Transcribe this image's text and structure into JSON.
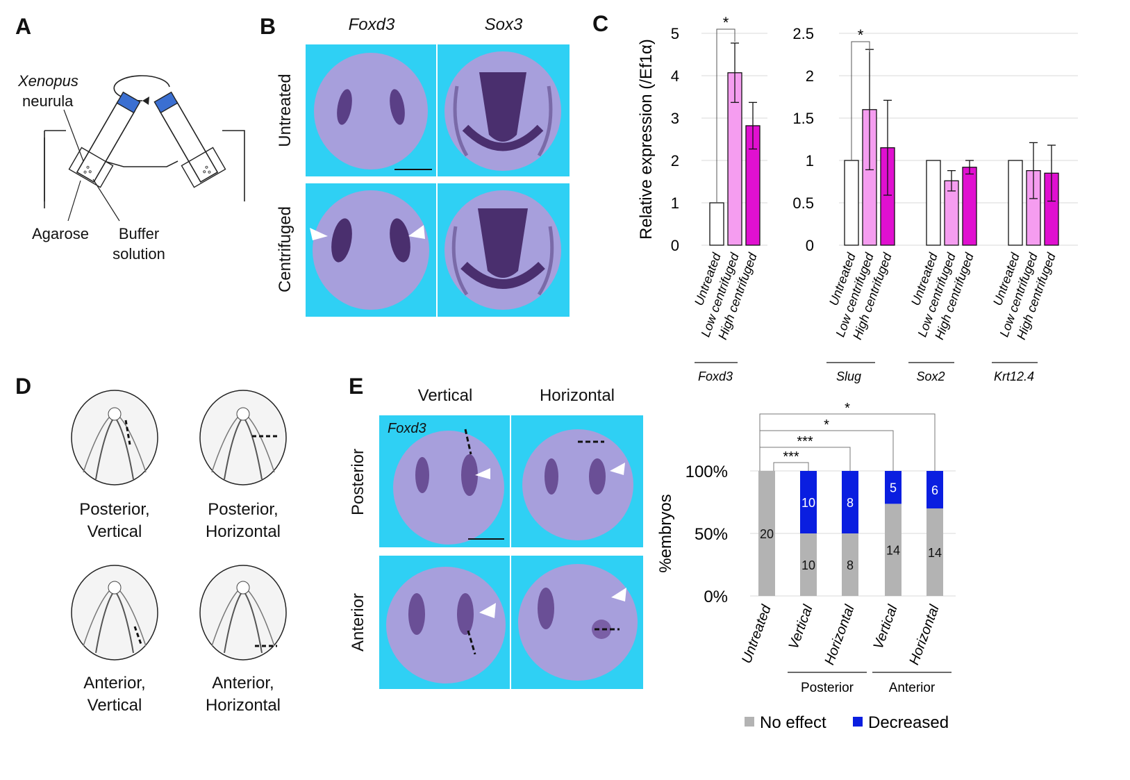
{
  "panel_letters": {
    "A": "A",
    "B": "B",
    "C": "C",
    "D": "D",
    "E": "E"
  },
  "panelA": {
    "xenopus": "Xenopus",
    "neurula": "neurula",
    "agarose": "Agarose",
    "buffer_line1": "Buffer",
    "buffer_line2": "solution"
  },
  "panelB": {
    "col1": "Foxd3",
    "col2": "Sox3",
    "row1": "Untreated",
    "row2": "Centrifuged"
  },
  "panelD": {
    "c1_l1": "Posterior,",
    "c1_l2": "Vertical",
    "c2_l1": "Posterior,",
    "c2_l2": "Horizontal",
    "c3_l1": "Anterior,",
    "c3_l2": "Vertical",
    "c4_l1": "Anterior,",
    "c4_l2": "Horizontal"
  },
  "panelE": {
    "col1": "Vertical",
    "col2": "Horizontal",
    "row1": "Posterior",
    "row2": "Anterior",
    "gene": "Foxd3"
  },
  "colors": {
    "untreated": "#ffffff",
    "low": "#f59df0",
    "high": "#e010d0",
    "no_effect": "#b3b3b3",
    "decreased": "#0a1ee0",
    "photo_bg": "#2fd0f4"
  },
  "chart_data": [
    {
      "type": "bar",
      "ylabel": "Relative expression (/Ef1α)",
      "ylim": [
        0,
        5
      ],
      "yticks": [
        "0",
        "1",
        "2",
        "3",
        "4",
        "5"
      ],
      "categories": [
        "Untreated",
        "Low centrifuged",
        "High centrifuged"
      ],
      "group": "Foxd3",
      "values": [
        1.0,
        4.07,
        2.82
      ],
      "errors": [
        0,
        0.7,
        0.55
      ],
      "significance": {
        "pair": [
          0,
          1
        ],
        "label": "*"
      }
    },
    {
      "type": "bar",
      "ylim": [
        0,
        2.5
      ],
      "yticks": [
        "0",
        "0.5",
        "1",
        "1.5",
        "2",
        "2.5"
      ],
      "categories": [
        "Untreated",
        "Low centrifuged",
        "High centrifuged"
      ],
      "groups": [
        {
          "name": "Slug",
          "values": [
            1.0,
            1.6,
            1.15
          ],
          "errors": [
            0,
            0.71,
            0.56
          ],
          "significance": {
            "pair": [
              0,
              1
            ],
            "label": "*"
          }
        },
        {
          "name": "Sox2",
          "values": [
            1.0,
            0.76,
            0.92
          ],
          "errors": [
            0,
            0.12,
            0.08
          ]
        },
        {
          "name": "Krt12.4",
          "values": [
            1.0,
            0.88,
            0.85
          ],
          "errors": [
            0,
            0.33,
            0.33
          ]
        }
      ]
    },
    {
      "type": "bar",
      "stacked": true,
      "ylabel": "%embryos",
      "ylim": [
        0,
        100
      ],
      "yticks": [
        "0%",
        "50%",
        "100%"
      ],
      "categories": [
        "Untreated",
        "Vertical",
        "Horizontal",
        "Vertical",
        "Horizontal"
      ],
      "category_groups": [
        {
          "name": "Posterior",
          "members": [
            1,
            2
          ]
        },
        {
          "name": "Anterior",
          "members": [
            3,
            4
          ]
        }
      ],
      "series": [
        {
          "name": "No effect",
          "counts": [
            20,
            10,
            8,
            14,
            14
          ]
        },
        {
          "name": "Decreased",
          "counts": [
            0,
            10,
            8,
            5,
            6
          ]
        }
      ],
      "significance": [
        {
          "pair": [
            0,
            1
          ],
          "label": "***"
        },
        {
          "pair": [
            0,
            2
          ],
          "label": "***"
        },
        {
          "pair": [
            0,
            3
          ],
          "label": "*"
        },
        {
          "pair": [
            0,
            4
          ],
          "label": "*"
        }
      ]
    }
  ]
}
